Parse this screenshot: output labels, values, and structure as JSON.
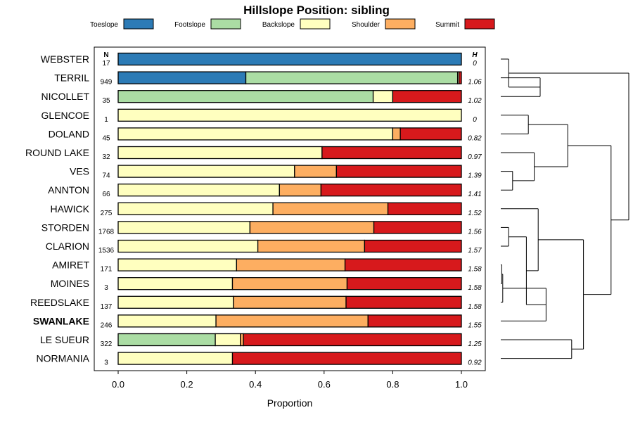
{
  "chart_data": {
    "type": "bar",
    "stacked": true,
    "orientation": "horizontal",
    "title": "Hillslope Position: sibling",
    "xlabel": "Proportion",
    "xlim": [
      0,
      1
    ],
    "xticks": [
      "0.0",
      "0.2",
      "0.4",
      "0.6",
      "0.8",
      "1.0"
    ],
    "xtick_values": [
      0,
      0.2,
      0.4,
      0.6,
      0.8,
      1.0
    ],
    "n_header": "N",
    "h_header": "H",
    "legend": [
      {
        "name": "Toeslope",
        "color": "#2c7bb6"
      },
      {
        "name": "Footslope",
        "color": "#abdda4"
      },
      {
        "name": "Backslope",
        "color": "#ffffbf"
      },
      {
        "name": "Shoulder",
        "color": "#fdae61"
      },
      {
        "name": "Summit",
        "color": "#d7191c"
      }
    ],
    "rows": [
      {
        "name": "WEBSTER",
        "n": "17",
        "h": "0",
        "bold": false,
        "values": [
          1.0,
          0,
          0,
          0,
          0
        ]
      },
      {
        "name": "TERRIL",
        "n": "949",
        "h": "1.06",
        "bold": false,
        "values": [
          0.372,
          0.617,
          0.004,
          0,
          0.007
        ]
      },
      {
        "name": "NICOLLET",
        "n": "35",
        "h": "1.02",
        "bold": false,
        "values": [
          0,
          0.743,
          0.057,
          0,
          0.2
        ]
      },
      {
        "name": "GLENCOE",
        "n": "1",
        "h": "0",
        "bold": false,
        "values": [
          0,
          0,
          1.0,
          0,
          0
        ]
      },
      {
        "name": "DOLAND",
        "n": "45",
        "h": "0.82",
        "bold": false,
        "values": [
          0,
          0,
          0.8,
          0.022,
          0.178
        ]
      },
      {
        "name": "ROUND LAKE",
        "n": "32",
        "h": "0.97",
        "bold": false,
        "values": [
          0,
          0,
          0.594,
          0,
          0.406
        ]
      },
      {
        "name": "VES",
        "n": "74",
        "h": "1.39",
        "bold": false,
        "values": [
          0,
          0,
          0.514,
          0.122,
          0.364
        ]
      },
      {
        "name": "ANNTON",
        "n": "66",
        "h": "1.41",
        "bold": false,
        "values": [
          0,
          0,
          0.47,
          0.121,
          0.409
        ]
      },
      {
        "name": "HAWICK",
        "n": "275",
        "h": "1.52",
        "bold": false,
        "values": [
          0,
          0,
          0.451,
          0.335,
          0.214
        ]
      },
      {
        "name": "STORDEN",
        "n": "1768",
        "h": "1.56",
        "bold": false,
        "values": [
          0,
          0,
          0.384,
          0.361,
          0.255
        ]
      },
      {
        "name": "CLARION",
        "n": "1536",
        "h": "1.57",
        "bold": false,
        "values": [
          0,
          0,
          0.407,
          0.311,
          0.282
        ]
      },
      {
        "name": "AMIRET",
        "n": "171",
        "h": "1.58",
        "bold": false,
        "values": [
          0,
          0,
          0.345,
          0.316,
          0.339
        ]
      },
      {
        "name": "MOINES",
        "n": "3",
        "h": "1.58",
        "bold": false,
        "values": [
          0,
          0,
          0.333,
          0.334,
          0.333
        ]
      },
      {
        "name": "REEDSLAKE",
        "n": "137",
        "h": "1.58",
        "bold": false,
        "values": [
          0,
          0,
          0.336,
          0.328,
          0.336
        ]
      },
      {
        "name": "SWANLAKE",
        "n": "246",
        "h": "1.55",
        "bold": true,
        "values": [
          0,
          0,
          0.285,
          0.443,
          0.272
        ]
      },
      {
        "name": "LE SUEUR",
        "n": "322",
        "h": "1.25",
        "bold": false,
        "values": [
          0,
          0.283,
          0.073,
          0.009,
          0.635
        ]
      },
      {
        "name": "NORMANIA",
        "n": "3",
        "h": "0.92",
        "bold": false,
        "values": [
          0,
          0,
          0.333,
          0,
          0.667
        ]
      }
    ],
    "dendrogram_merges": [
      {
        "id": 0,
        "a": "WEBSTER",
        "b": 1,
        "height": 0.04
      },
      {
        "id": 1,
        "a": "TERRIL",
        "b": "NICOLLET",
        "height": 0.2
      },
      {
        "id": 2,
        "a": "GLENCOE",
        "b": "DOLAND",
        "height": 0.14
      },
      {
        "id": 3,
        "a": "ROUND LAKE",
        "b": 4,
        "height": 0.17
      },
      {
        "id": 4,
        "a": "VES",
        "b": "ANNTON",
        "height": 0.06
      },
      {
        "id": 5,
        "a": 2,
        "b": 3,
        "height": 0.34
      },
      {
        "id": 6,
        "a": 7,
        "b": 13,
        "height": 0.42
      },
      {
        "id": 7,
        "a": "HAWICK",
        "b": 8,
        "height": 0.19
      },
      {
        "id": 8,
        "a": 9,
        "b": 10,
        "height": 0.13
      },
      {
        "id": 9,
        "a": "STORDEN",
        "b": "CLARION",
        "height": 0.04
      },
      {
        "id": 10,
        "a": 11,
        "b": "SWANLAKE",
        "height": 0.23
      },
      {
        "id": 11,
        "a": 12,
        "b": "REEDSLAKE",
        "height": 0.01
      },
      {
        "id": 12,
        "a": "AMIRET",
        "b": "MOINES",
        "height": 0.005
      },
      {
        "id": 13,
        "a": "LE SUEUR",
        "b": "NORMANIA",
        "height": 0.36
      },
      {
        "id": 14,
        "a": 5,
        "b": 6,
        "height": 0.56
      },
      {
        "id": 15,
        "a": 0,
        "b": 14,
        "height": 0.65
      }
    ]
  }
}
